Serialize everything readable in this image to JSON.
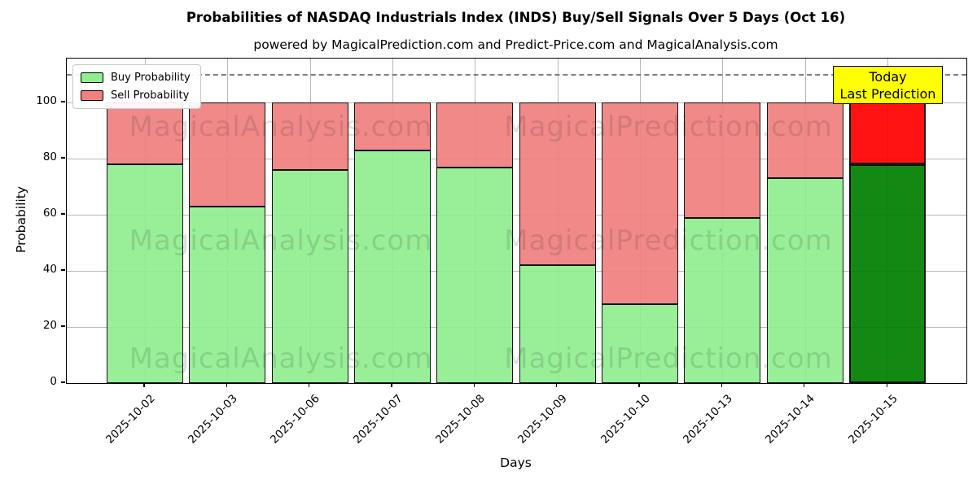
{
  "title": "Probabilities of NASDAQ Industrials Index (INDS) Buy/Sell Signals Over 5 Days (Oct 16)",
  "subtitle": "powered by MagicalPrediction.com and Predict-Price.com and MagicalAnalysis.com",
  "watermarks": [
    "MagicalAnalysis.com",
    "MagicalPrediction.com"
  ],
  "legend": [
    {
      "label": "Buy Probability",
      "color": "#90ee90"
    },
    {
      "label": "Sell Probability",
      "color": "#f08080"
    }
  ],
  "annotation": {
    "line1": "Today",
    "line2": "Last Prediction",
    "bg_color": "#ffff00"
  },
  "chart_data": {
    "type": "bar",
    "stacked": true,
    "title": "Probabilities of NASDAQ Industrials Index (INDS) Buy/Sell Signals Over 5 Days (Oct 16)",
    "xlabel": "Days",
    "ylabel": "Probability",
    "categories": [
      "2025-10-02",
      "2025-10-03",
      "2025-10-06",
      "2025-10-07",
      "2025-10-08",
      "2025-10-09",
      "2025-10-10",
      "2025-10-13",
      "2025-10-14",
      "2025-10-15"
    ],
    "series": [
      {
        "name": "Buy Probability",
        "color": "#90ee90",
        "highlight_color": "#008000",
        "values": [
          78,
          63,
          76,
          83,
          77,
          42,
          28,
          59,
          73,
          78
        ]
      },
      {
        "name": "Sell Probability",
        "color": "#f08080",
        "highlight_color": "#ff0000",
        "values": [
          22,
          37,
          24,
          17,
          23,
          58,
          72,
          41,
          27,
          22
        ]
      }
    ],
    "highlight_index": 9,
    "yticks": [
      0,
      20,
      40,
      60,
      80,
      100
    ],
    "ylim": [
      0,
      115.7
    ],
    "threshold_line_y": 110,
    "grid": true,
    "legend_position": "upper left"
  }
}
